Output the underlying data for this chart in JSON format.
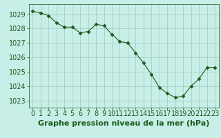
{
  "hours": [
    0,
    1,
    2,
    3,
    4,
    5,
    6,
    7,
    8,
    9,
    10,
    11,
    12,
    13,
    14,
    15,
    16,
    17,
    18,
    19,
    20,
    21,
    22,
    23
  ],
  "pressure": [
    1029.2,
    1029.1,
    1028.9,
    1028.4,
    1028.1,
    1028.1,
    1027.7,
    1027.8,
    1028.3,
    1028.2,
    1027.6,
    1027.1,
    1027.0,
    1026.3,
    1025.6,
    1024.8,
    1023.9,
    1023.5,
    1023.2,
    1023.3,
    1024.0,
    1024.5,
    1025.3,
    1025.3
  ],
  "line_color": "#1a5c1a",
  "marker_color": "#1a5c1a",
  "bg_color": "#c8eee8",
  "grid_color": "#a0c8c0",
  "title": "Graphe pression niveau de la mer (hPa)",
  "xlabel_labels": [
    "0",
    "1",
    "2",
    "3",
    "4",
    "5",
    "6",
    "7",
    "8",
    "9",
    "10",
    "11",
    "12",
    "13",
    "14",
    "15",
    "16",
    "17",
    "18",
    "19",
    "20",
    "21",
    "22",
    "23"
  ],
  "ylim": [
    1022.5,
    1029.7
  ],
  "yticks": [
    1023,
    1024,
    1025,
    1026,
    1027,
    1028,
    1029
  ],
  "title_fontsize": 8,
  "tick_fontsize": 7
}
